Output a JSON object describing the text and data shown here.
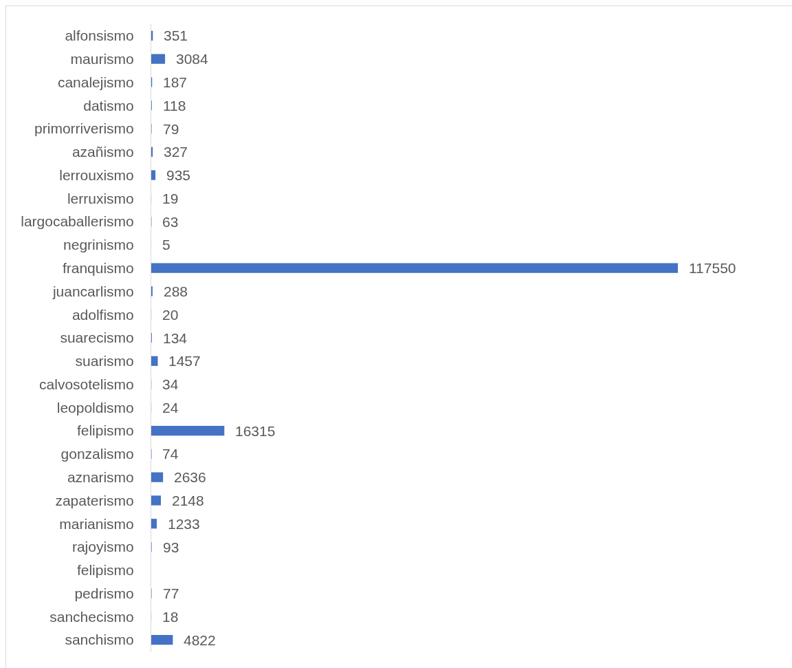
{
  "chart_data": {
    "type": "bar",
    "orientation": "horizontal",
    "categories": [
      "alfonsismo",
      "maurismo",
      "canalejismo",
      "datismo",
      "primorriverismo",
      "azañismo",
      "lerrouxismo",
      "lerruxismo",
      "largocaballerismo",
      "negrinismo",
      "franquismo",
      "juancarlismo",
      "adolfismo",
      "suarecismo",
      "suarismo",
      "calvosotelismo",
      "leopoldismo",
      "felipismo",
      "gonzalismo",
      "aznarismo",
      "zapaterismo",
      "marianismo",
      "rajoyismo",
      "felipismo",
      "pedrismo",
      "sanchecismo",
      "sanchismo"
    ],
    "values": [
      351,
      3084,
      187,
      118,
      79,
      327,
      935,
      19,
      63,
      5,
      117550,
      288,
      20,
      134,
      1457,
      34,
      24,
      16315,
      74,
      2636,
      2148,
      1233,
      93,
      null,
      77,
      18,
      4822
    ],
    "color": "#4472c4",
    "data_labels": true,
    "tick_labels": "y"
  }
}
